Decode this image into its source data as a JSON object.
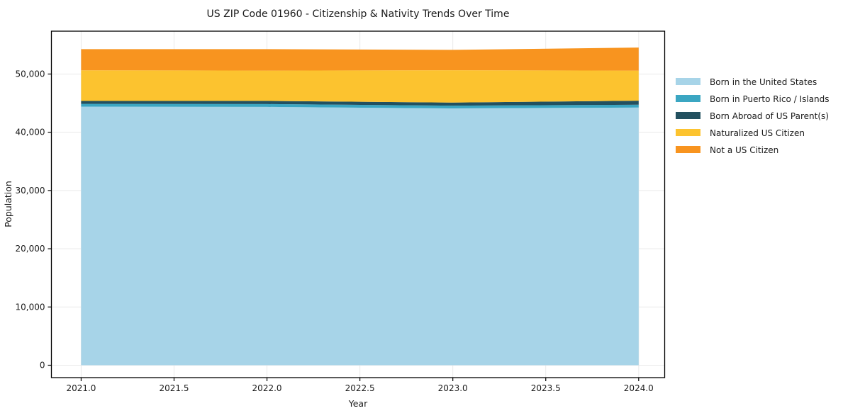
{
  "chart_data": {
    "type": "area",
    "stacked": true,
    "title": "US ZIP Code 01960 - Citizenship & Nativity Trends Over Time",
    "xlabel": "Year",
    "ylabel": "Population",
    "x": [
      2021,
      2022,
      2023,
      2024
    ],
    "series": [
      {
        "name": "Born in the United States",
        "color": "#A7D4E8",
        "values": [
          44400,
          44350,
          44100,
          44250
        ]
      },
      {
        "name": "Born in Puerto Rico / Islands",
        "color": "#3BA6C2",
        "values": [
          480,
          490,
          470,
          480
        ]
      },
      {
        "name": "Born Abroad of US Parent(s)",
        "color": "#22505F",
        "values": [
          500,
          550,
          530,
          700
        ]
      },
      {
        "name": "Naturalized US Citizen",
        "color": "#FCC32F",
        "values": [
          5260,
          5200,
          5560,
          5150
        ]
      },
      {
        "name": "Not a US Citizen",
        "color": "#F8941F",
        "values": [
          3630,
          3680,
          3490,
          3970
        ]
      }
    ],
    "xlim": [
      2020.84,
      2024.14
    ],
    "ylim": [
      -2130,
      57360
    ],
    "x_ticks": [
      2021.0,
      2021.5,
      2022.0,
      2022.5,
      2023.0,
      2023.5,
      2024.0
    ],
    "x_tick_labels": [
      "2021.0",
      "2021.5",
      "2022.0",
      "2022.5",
      "2023.0",
      "2023.5",
      "2024.0"
    ],
    "y_ticks": [
      0,
      10000,
      20000,
      30000,
      40000,
      50000
    ],
    "y_tick_labels": [
      "0",
      "10,000",
      "20,000",
      "30,000",
      "40,000",
      "50,000"
    ],
    "grid": true,
    "legend_position": "right",
    "colors": {
      "frame": "#000000",
      "gridline": "#e9e9e9",
      "tick": "#000000",
      "text": "#1a1a1a"
    }
  }
}
